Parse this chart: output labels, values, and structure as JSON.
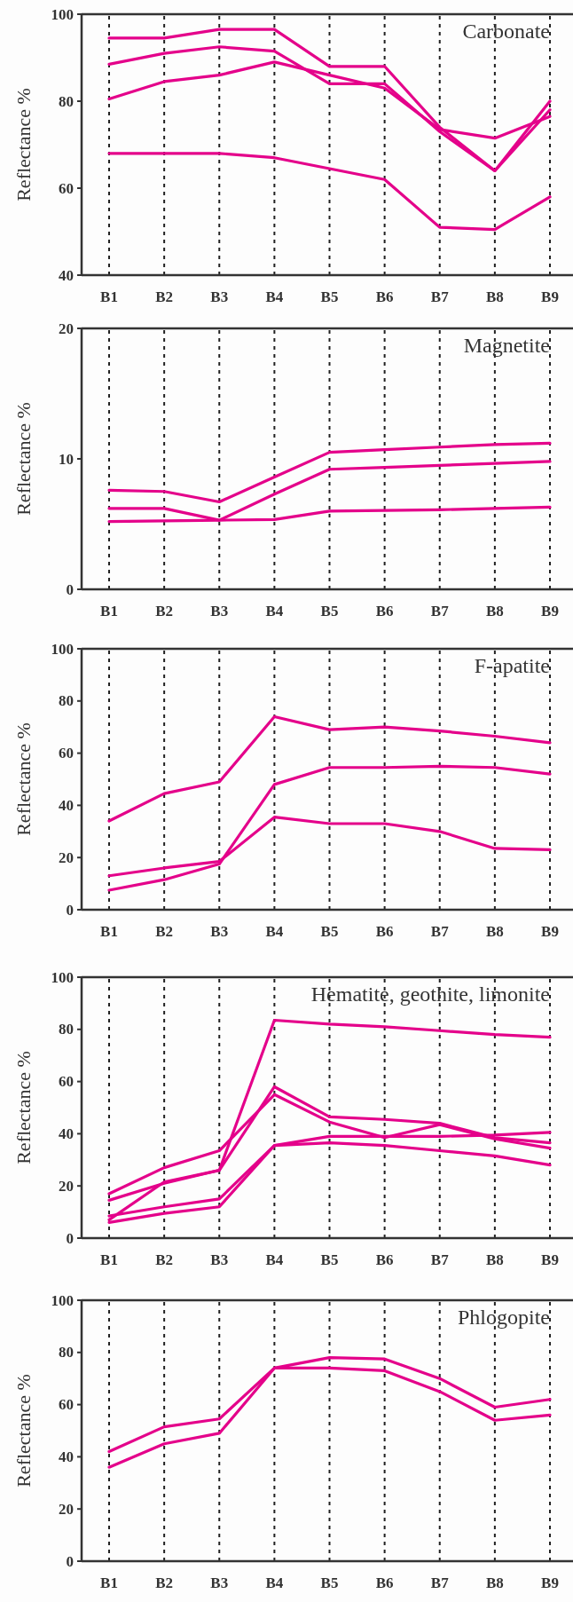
{
  "chart_data": [
    {
      "type": "line",
      "title": "Carbonate",
      "ylabel": "Reflectance %",
      "categories": [
        "B1",
        "B2",
        "B3",
        "B4",
        "B5",
        "B6",
        "B7",
        "B8",
        "B9"
      ],
      "ylim": [
        40,
        100
      ],
      "yticks": [
        40,
        60,
        80,
        100
      ],
      "grid": "x",
      "line_style": "solid",
      "series": [
        {
          "color": "#e4008a",
          "values": [
            94.5,
            94.5,
            96.5,
            96.5,
            88,
            88,
            74,
            64,
            78
          ]
        },
        {
          "color": "#e4008a",
          "values": [
            88.5,
            91,
            92.5,
            91.5,
            84,
            84,
            73,
            64,
            80
          ]
        },
        {
          "color": "#e4008a",
          "values": [
            80.5,
            84.5,
            86,
            89,
            86,
            83,
            73.5,
            71.5,
            76.5
          ]
        },
        {
          "color": "#e4008a",
          "values": [
            68,
            68,
            68,
            67,
            64.5,
            62,
            51,
            50.5,
            58
          ]
        }
      ]
    },
    {
      "type": "line",
      "title": "Magnetite",
      "ylabel": "Reflectance %",
      "categories": [
        "B1",
        "B2",
        "B3",
        "B4",
        "B5",
        "B6",
        "B7",
        "B8",
        "B9"
      ],
      "ylim": [
        0,
        20
      ],
      "yticks": [
        0,
        10,
        20
      ],
      "grid": "x",
      "line_style": "solid",
      "series": [
        {
          "color": "#e4008a",
          "values": [
            7.6,
            7.5,
            6.7,
            8.6,
            10.5,
            10.7,
            10.9,
            11.1,
            11.2
          ]
        },
        {
          "color": "#e4008a",
          "values": [
            6.2,
            6.2,
            5.3,
            7.3,
            9.2,
            9.35,
            9.5,
            9.65,
            9.8
          ]
        },
        {
          "color": "#e4008a",
          "values": [
            5.2,
            5.25,
            5.3,
            5.35,
            6.0,
            6.05,
            6.1,
            6.2,
            6.3
          ]
        }
      ]
    },
    {
      "type": "line",
      "title": "F-apatite",
      "ylabel": "Reflectance %",
      "categories": [
        "B1",
        "B2",
        "B3",
        "B4",
        "B5",
        "B6",
        "B7",
        "B8",
        "B9"
      ],
      "ylim": [
        0,
        100
      ],
      "yticks": [
        0,
        20,
        40,
        60,
        80,
        100
      ],
      "grid": "x",
      "line_style": "solid",
      "series": [
        {
          "color": "#e4008a",
          "values": [
            34,
            44.5,
            49,
            74,
            69,
            70,
            68.5,
            66.5,
            64
          ]
        },
        {
          "color": "#e4008a",
          "values": [
            7.5,
            11.5,
            17.5,
            48,
            54.5,
            54.5,
            55,
            54.5,
            52
          ]
        },
        {
          "color": "#e4008a",
          "values": [
            13,
            16,
            18.5,
            35.5,
            33,
            33,
            30,
            23.5,
            23
          ]
        }
      ]
    },
    {
      "type": "line",
      "title": "Hematite, geothite, limonite",
      "ylabel": "Reflectance %",
      "categories": [
        "B1",
        "B2",
        "B3",
        "B4",
        "B5",
        "B6",
        "B7",
        "B8",
        "B9"
      ],
      "ylim": [
        0,
        100
      ],
      "yticks": [
        0,
        20,
        40,
        60,
        80,
        100
      ],
      "grid": "x",
      "line_style": "solid",
      "series": [
        {
          "color": "#e4008a",
          "values": [
            14.5,
            21,
            26,
            83.5,
            82,
            81,
            79.5,
            78,
            77
          ]
        },
        {
          "color": "#e4008a",
          "values": [
            17,
            27,
            33.5,
            55,
            44.5,
            38.5,
            43.5,
            38,
            34.5
          ]
        },
        {
          "color": "#e4008a",
          "values": [
            7,
            21.5,
            26,
            58,
            46.5,
            45.5,
            44,
            38.5,
            36.5
          ]
        },
        {
          "color": "#e4008a",
          "values": [
            8.5,
            12,
            15,
            35.5,
            39,
            39,
            39,
            39.5,
            40.5
          ]
        },
        {
          "color": "#e4008a",
          "values": [
            6,
            9.5,
            12,
            35.5,
            36.5,
            35.5,
            33.5,
            31.5,
            28
          ]
        }
      ]
    },
    {
      "type": "line",
      "title": "Phlogopite",
      "ylabel": "Reflectance %",
      "categories": [
        "B1",
        "B2",
        "B3",
        "B4",
        "B5",
        "B6",
        "B7",
        "B8",
        "B9"
      ],
      "ylim": [
        0,
        100
      ],
      "yticks": [
        0,
        20,
        40,
        60,
        80,
        100
      ],
      "grid": "x",
      "line_style": "solid",
      "series": [
        {
          "color": "#e4008a",
          "values": [
            42,
            51.5,
            54.5,
            74,
            78,
            77.5,
            70,
            59,
            62
          ]
        },
        {
          "color": "#e4008a",
          "values": [
            36,
            45,
            49,
            74,
            74,
            73,
            65,
            54,
            56
          ]
        }
      ]
    }
  ]
}
